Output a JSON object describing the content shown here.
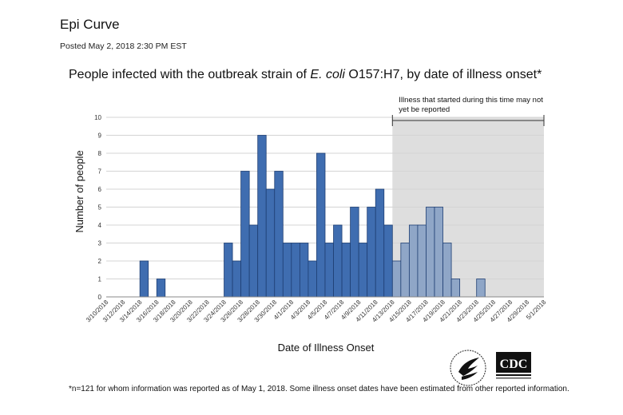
{
  "page": {
    "title": "Epi Curve",
    "posted": "Posted May 2, 2018 2:30 PM EST",
    "footnote": "*n=121 for whom information was reported as of May 1, 2018. Some illness onset dates have been estimated from other reported information."
  },
  "logos": {
    "hhs": "hhs-eagle-seal",
    "cdc": "CDC"
  },
  "colors": {
    "bar_reported": "#3f6db0",
    "bar_recent": "#8fa6c7",
    "bar_border": "#1f3f73",
    "shade": "#dedede"
  },
  "chart_data": {
    "type": "bar",
    "title_prefix": "People infected with the outbreak strain of ",
    "title_italic": "E. coli",
    "title_suffix": " O157:H7, by date of illness onset*",
    "xlabel": "Date of Illness Onset",
    "ylabel": "Number of people",
    "ylim": [
      0,
      10
    ],
    "yticks": [
      0,
      1,
      2,
      3,
      4,
      5,
      6,
      7,
      8,
      9,
      10
    ],
    "grid": true,
    "start_date": "3/10/2018",
    "xtick_labels": [
      "3/10/2018",
      "3/12/2018",
      "3/14/2018",
      "3/16/2018",
      "3/18/2018",
      "3/20/2018",
      "3/22/2018",
      "3/24/2018",
      "3/26/2018",
      "3/28/2018",
      "3/30/2018",
      "4/1/2018",
      "4/3/2018",
      "4/5/2018",
      "4/7/2018",
      "4/9/2018",
      "4/11/2018",
      "4/13/2018",
      "4/15/2018",
      "4/17/2018",
      "4/19/2018",
      "4/21/2018",
      "4/23/2018",
      "4/25/2018",
      "4/27/2018",
      "4/29/2018",
      "5/1/2018"
    ],
    "values": [
      0,
      0,
      0,
      0,
      2,
      0,
      1,
      0,
      0,
      0,
      0,
      0,
      0,
      0,
      3,
      2,
      7,
      4,
      9,
      6,
      7,
      3,
      3,
      3,
      2,
      8,
      3,
      4,
      3,
      5,
      3,
      5,
      6,
      4,
      2,
      3,
      4,
      4,
      5,
      5,
      3,
      1,
      0,
      0,
      1,
      0,
      0,
      0,
      0,
      0,
      0,
      0,
      0
    ],
    "shaded_from_index": 34,
    "shaded_to_index": 52,
    "annotation": "Illness that started during this time may not yet be reported"
  }
}
